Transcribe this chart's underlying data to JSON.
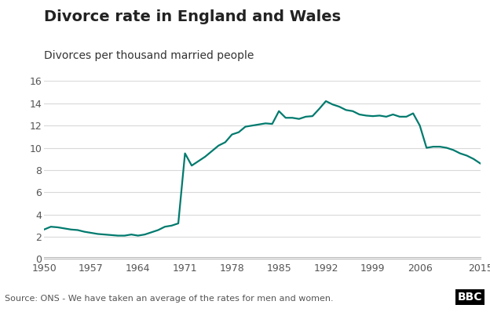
{
  "title": "Divorce rate in England and Wales",
  "subtitle": "Divorces per thousand married people",
  "source": "Source: ONS - We have taken an average of the rates for men and women.",
  "bbc_label": "BBC",
  "line_color": "#007a6e",
  "background_color": "#ffffff",
  "grid_color": "#d9d9d9",
  "ylim": [
    0,
    16
  ],
  "yticks": [
    0,
    2,
    4,
    6,
    8,
    10,
    12,
    14,
    16
  ],
  "xticks": [
    1950,
    1957,
    1964,
    1971,
    1978,
    1985,
    1992,
    1999,
    2006,
    2015
  ],
  "xlim": [
    1950,
    2015
  ],
  "years": [
    1950,
    1951,
    1952,
    1953,
    1954,
    1955,
    1956,
    1957,
    1958,
    1959,
    1960,
    1961,
    1962,
    1963,
    1964,
    1965,
    1966,
    1967,
    1968,
    1969,
    1970,
    1971,
    1972,
    1973,
    1974,
    1975,
    1976,
    1977,
    1978,
    1979,
    1980,
    1981,
    1982,
    1983,
    1984,
    1985,
    1986,
    1987,
    1988,
    1989,
    1990,
    1991,
    1992,
    1993,
    1994,
    1995,
    1996,
    1997,
    1998,
    1999,
    2000,
    2001,
    2002,
    2003,
    2004,
    2005,
    2006,
    2007,
    2008,
    2009,
    2010,
    2011,
    2012,
    2013,
    2014,
    2015
  ],
  "values": [
    2.65,
    2.9,
    2.85,
    2.75,
    2.65,
    2.6,
    2.45,
    2.35,
    2.25,
    2.2,
    2.15,
    2.1,
    2.1,
    2.2,
    2.1,
    2.2,
    2.4,
    2.6,
    2.9,
    3.0,
    3.2,
    9.5,
    8.4,
    8.8,
    9.2,
    9.7,
    10.2,
    10.5,
    11.2,
    11.4,
    11.9,
    12.0,
    12.1,
    12.2,
    12.15,
    13.3,
    12.7,
    12.7,
    12.6,
    12.8,
    12.85,
    13.5,
    14.2,
    13.9,
    13.7,
    13.4,
    13.3,
    13.0,
    12.9,
    12.85,
    12.9,
    12.8,
    13.0,
    12.8,
    12.8,
    13.1,
    12.0,
    10.0,
    10.1,
    10.1,
    10.0,
    9.8,
    9.5,
    9.3,
    9.0,
    8.6
  ],
  "title_fontsize": 14,
  "subtitle_fontsize": 10,
  "tick_fontsize": 9,
  "source_fontsize": 8,
  "bbc_fontsize": 10,
  "line_width": 1.6
}
